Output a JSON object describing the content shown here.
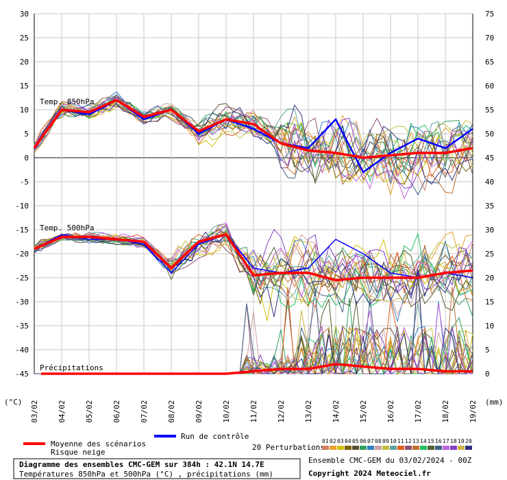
{
  "chart_data": {
    "type": "line",
    "title": "Diagramme des ensembles CMC-GEM sur 384h : 42.1N 14.7E",
    "subtitle": "Températures 850hPa et 500hPa (°C) , précipitations (mm)",
    "ylabel_left": "(°C)",
    "ylabel_right": "(mm)",
    "ylim_left": [
      -45,
      30
    ],
    "ylim_right": [
      0,
      75
    ],
    "yticks_left": [
      "30",
      "25",
      "20",
      "15",
      "10",
      "5",
      "0",
      "-5",
      "-10",
      "-15",
      "-20",
      "-25",
      "-30",
      "-35",
      "-40",
      "-45"
    ],
    "yticks_right": [
      "75",
      "70",
      "65",
      "60",
      "55",
      "50",
      "45",
      "40",
      "35",
      "30",
      "25",
      "20",
      "15",
      "10",
      "5",
      "0"
    ],
    "x_dates": [
      "03/02",
      "04/02",
      "05/02",
      "06/02",
      "07/02",
      "08/02",
      "09/02",
      "10/02",
      "11/02",
      "12/02",
      "13/02",
      "14/02",
      "15/02",
      "16/02",
      "17/02",
      "18/02",
      "19/02"
    ],
    "grid": true,
    "annotations": {
      "t850": "Temp. 850hPa",
      "t500": "Temp. 500hPa",
      "precip": "Précipitations"
    },
    "mean_t850": [
      2,
      10,
      9.5,
      12,
      8.5,
      10,
      5.5,
      8,
      7,
      3,
      1.5,
      1,
      0,
      0.5,
      1,
      1,
      2
    ],
    "mean_t500": [
      -19,
      -16.5,
      -16.5,
      -17,
      -17.5,
      -23,
      -17.5,
      -16,
      -24.5,
      -24,
      -24,
      -25.5,
      -25,
      -25,
      -25,
      -24,
      -23.5
    ],
    "mean_precip": [
      0,
      0,
      0,
      0,
      0,
      0,
      0,
      0,
      0.5,
      1,
      1,
      2,
      1.5,
      1,
      1,
      0.5,
      0.5
    ],
    "control_t850": [
      2,
      10,
      9,
      12,
      8,
      10,
      5,
      8,
      6,
      3,
      2,
      8,
      -3,
      1,
      4,
      2,
      6
    ],
    "control_t500": [
      -19,
      -16,
      -17,
      -17,
      -18,
      -24,
      -18,
      -16,
      -23,
      -24,
      -23,
      -17,
      -20,
      -24,
      -25,
      -24,
      -25
    ],
    "perturbation_codes": [
      "01",
      "02",
      "03",
      "04",
      "05",
      "06",
      "07",
      "08",
      "09",
      "10",
      "11",
      "12",
      "13",
      "14",
      "15",
      "16",
      "17",
      "18",
      "19",
      "20"
    ],
    "colors": {
      "mean": "#ff0000",
      "control": "#0000ff",
      "perturbations": [
        "#d08060",
        "#e8a030",
        "#d0c000",
        "#806000",
        "#605030",
        "#30a060",
        "#3080c0",
        "#d0a0a0",
        "#c0c040",
        "#60a0a0",
        "#e06020",
        "#905070",
        "#c07030",
        "#20c060",
        "#506030",
        "#406080",
        "#c060e0",
        "#8040c0",
        "#d0b040",
        "#303080"
      ]
    }
  },
  "legend": {
    "mean_label": "Moyenne des scénarios",
    "snow_label": "Risque neige",
    "control_label": "Run de contrôle",
    "perturbations_label": "20 Perturbations"
  },
  "footer": {
    "title": "Diagramme des ensembles CMC-GEM sur 384h : 42.1N 14.7E",
    "subtitle": "Températures 850hPa et 500hPa (°C) , précipitations (mm)",
    "run_info": "Ensemble CMC-GEM du 03/02/2024 - 00Z",
    "copyright": "Copyright 2024 Meteociel.fr"
  }
}
